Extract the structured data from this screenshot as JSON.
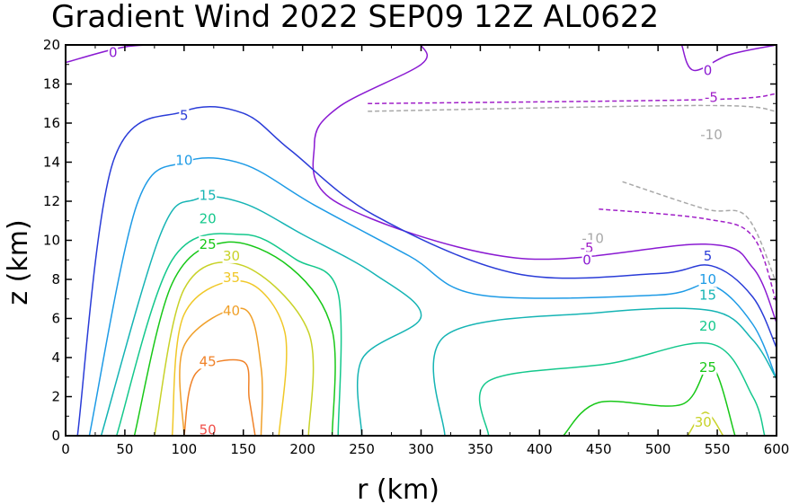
{
  "chart_data": {
    "type": "contour",
    "title": "Gradient Wind 2022 SEP09 12Z  AL0622",
    "xlabel": "r (km)",
    "ylabel": "z (km)",
    "xlim": [
      0,
      600
    ],
    "ylim": [
      0,
      20
    ],
    "x_ticks": [
      0,
      50,
      100,
      150,
      200,
      250,
      300,
      350,
      400,
      450,
      500,
      550,
      600
    ],
    "y_ticks": [
      0,
      2,
      4,
      6,
      8,
      10,
      12,
      14,
      16,
      18,
      20
    ],
    "contour_levels": [
      {
        "value": -10,
        "color": "#a8a8a8",
        "dashed": true,
        "label": "-10",
        "segments": [
          [
            [
              255,
              16.6
            ],
            [
              540,
              16.9
            ],
            [
              600,
              16.6
            ]
          ],
          [
            [
              470,
              13.0
            ],
            [
              540,
              11.6
            ],
            [
              575,
              11.2
            ],
            [
              600,
              7.8
            ]
          ]
        ]
      },
      {
        "value": -5,
        "color": "#a020c8",
        "dashed": true,
        "label": "-5",
        "segments": [
          [
            [
              255,
              17.0
            ],
            [
              540,
              17.2
            ],
            [
              600,
              17.5
            ]
          ],
          [
            [
              450,
              11.6
            ],
            [
              540,
              11.1
            ],
            [
              580,
              10.2
            ],
            [
              600,
              6.8
            ]
          ]
        ]
      },
      {
        "value": 0,
        "color": "#8a1ad2",
        "dashed": false,
        "label": "0",
        "segments": [
          [
            [
              0,
              19.1
            ],
            [
              50,
              19.9
            ],
            [
              90,
              20.0
            ]
          ],
          [
            [
              300,
              20.0
            ],
            [
              300,
              19.0
            ],
            [
              230,
              16.8
            ],
            [
              210,
              14.9
            ],
            [
              230,
              11.9
            ],
            [
              380,
              9.1
            ],
            [
              540,
              9.8
            ],
            [
              580,
              8.6
            ],
            [
              600,
              5.8
            ]
          ],
          [
            [
              520,
              20.0
            ],
            [
              530,
              18.7
            ],
            [
              560,
              19.5
            ],
            [
              600,
              20.0
            ]
          ]
        ]
      },
      {
        "value": 5,
        "color": "#2a3cd8",
        "dashed": false,
        "label": "5",
        "segments": [
          [
            [
              10,
              0
            ],
            [
              40,
              14
            ],
            [
              100,
              16.6
            ],
            [
              150,
              16.5
            ],
            [
              190,
              14.6
            ],
            [
              260,
              11.3
            ],
            [
              380,
              8.3
            ],
            [
              500,
              8.3
            ],
            [
              545,
              8.7
            ],
            [
              580,
              7.1
            ],
            [
              600,
              4.5
            ]
          ]
        ]
      },
      {
        "value": 10,
        "color": "#1e9be6",
        "dashed": false,
        "label": "10",
        "segments": [
          [
            [
              20,
              0
            ],
            [
              60,
              11.8
            ],
            [
              100,
              14.0
            ],
            [
              150,
              13.9
            ],
            [
              210,
              11.8
            ],
            [
              290,
              9.2
            ],
            [
              350,
              7.2
            ],
            [
              500,
              7.2
            ],
            [
              545,
              7.7
            ],
            [
              580,
              5.7
            ],
            [
              600,
              2.9
            ]
          ]
        ]
      },
      {
        "value": 15,
        "color": "#15b4b4",
        "dashed": false,
        "label": "15",
        "segments": [
          [
            [
              30,
              0
            ],
            [
              80,
              10.3
            ],
            [
              110,
              12.1
            ],
            [
              150,
              11.9
            ],
            [
              200,
              10.3
            ],
            [
              260,
              8.3
            ],
            [
              300,
              6.1
            ],
            [
              250,
              3.9
            ],
            [
              250,
              0
            ]
          ],
          [
            [
              320,
              0
            ],
            [
              320,
              5.1
            ],
            [
              450,
              6.3
            ],
            [
              545,
              6.4
            ],
            [
              580,
              4.9
            ],
            [
              600,
              2.9
            ]
          ]
        ]
      },
      {
        "value": 20,
        "color": "#14c88c",
        "dashed": false,
        "label": "20",
        "segments": [
          [
            [
              43,
              0
            ],
            [
              90,
              9.0
            ],
            [
              150,
              10.3
            ],
            [
              195,
              9.0
            ],
            [
              230,
              7.3
            ],
            [
              230,
              0
            ]
          ],
          [
            [
              357,
              0
            ],
            [
              357,
              2.8
            ],
            [
              460,
              3.7
            ],
            [
              545,
              4.7
            ],
            [
              580,
              2.0
            ],
            [
              590,
              0
            ]
          ]
        ]
      },
      {
        "value": 25,
        "color": "#18c818",
        "dashed": false,
        "label": "25",
        "segments": [
          [
            [
              58,
              0
            ],
            [
              90,
              7.8
            ],
            [
              135,
              9.9
            ],
            [
              190,
              8.6
            ],
            [
              225,
              5.4
            ],
            [
              225,
              0
            ]
          ],
          [
            [
              420,
              0
            ],
            [
              450,
              1.7
            ],
            [
              520,
              1.6
            ],
            [
              545,
              3.6
            ],
            [
              565,
              0
            ]
          ]
        ]
      },
      {
        "value": 30,
        "color": "#c8d228",
        "dashed": false,
        "label": "30",
        "segments": [
          [
            [
              75,
              0
            ],
            [
              100,
              7.5
            ],
            [
              150,
              8.7
            ],
            [
              205,
              5.3
            ],
            [
              205,
              0
            ]
          ],
          [
            [
              525,
              0
            ],
            [
              540,
              1.2
            ],
            [
              555,
              0
            ]
          ]
        ]
      },
      {
        "value": 35,
        "color": "#f0c828",
        "dashed": false,
        "label": "35",
        "segments": [
          [
            [
              90,
              0
            ],
            [
              100,
              6.2
            ],
            [
              150,
              7.9
            ],
            [
              185,
              5.3
            ],
            [
              180,
              0
            ]
          ]
        ]
      },
      {
        "value": 40,
        "color": "#f0a02a",
        "dashed": false,
        "label": "40",
        "segments": [
          [
            [
              100,
              0
            ],
            [
              100,
              4.6
            ],
            [
              150,
              6.5
            ],
            [
              165,
              3.5
            ],
            [
              165,
              0
            ]
          ]
        ]
      },
      {
        "value": 45,
        "color": "#f08228",
        "dashed": false,
        "label": "45",
        "segments": [
          [
            [
              100,
              0
            ],
            [
              110,
              3.2
            ],
            [
              150,
              3.8
            ],
            [
              155,
              1.9
            ],
            [
              160,
              0
            ]
          ]
        ]
      },
      {
        "value": 50,
        "color": "#f0504a",
        "dashed": false,
        "label": "50",
        "segments": []
      }
    ],
    "labels": [
      {
        "text": "0",
        "x": 40,
        "y": 19.6,
        "color": "#8a1ad2"
      },
      {
        "text": "0",
        "x": 542,
        "y": 18.7,
        "color": "#8a1ad2"
      },
      {
        "text": "-5",
        "x": 545,
        "y": 17.3,
        "color": "#a020c8"
      },
      {
        "text": "-10",
        "x": 545,
        "y": 15.4,
        "color": "#a8a8a8"
      },
      {
        "text": "5",
        "x": 100,
        "y": 16.4,
        "color": "#2a3cd8"
      },
      {
        "text": "10",
        "x": 100,
        "y": 14.1,
        "color": "#1e9be6"
      },
      {
        "text": "15",
        "x": 120,
        "y": 12.3,
        "color": "#15b4b4"
      },
      {
        "text": "20",
        "x": 120,
        "y": 11.1,
        "color": "#14c88c"
      },
      {
        "text": "25",
        "x": 120,
        "y": 9.8,
        "color": "#18c818"
      },
      {
        "text": "30",
        "x": 140,
        "y": 9.2,
        "color": "#c8d228"
      },
      {
        "text": "35",
        "x": 140,
        "y": 8.1,
        "color": "#f0c828"
      },
      {
        "text": "40",
        "x": 140,
        "y": 6.4,
        "color": "#f0a02a"
      },
      {
        "text": "45",
        "x": 120,
        "y": 3.8,
        "color": "#f08228"
      },
      {
        "text": "50",
        "x": 120,
        "y": 0.3,
        "color": "#f0504a"
      },
      {
        "text": "-10",
        "x": 445,
        "y": 10.1,
        "color": "#a8a8a8"
      },
      {
        "text": "-5",
        "x": 440,
        "y": 9.6,
        "color": "#a020c8"
      },
      {
        "text": "0",
        "x": 440,
        "y": 9.0,
        "color": "#8a1ad2"
      },
      {
        "text": "5",
        "x": 542,
        "y": 9.2,
        "color": "#2a3cd8"
      },
      {
        "text": "10",
        "x": 542,
        "y": 8.0,
        "color": "#1e9be6"
      },
      {
        "text": "15",
        "x": 542,
        "y": 7.2,
        "color": "#15b4b4"
      },
      {
        "text": "20",
        "x": 542,
        "y": 5.6,
        "color": "#14c88c"
      },
      {
        "text": "25",
        "x": 542,
        "y": 3.5,
        "color": "#18c818"
      },
      {
        "text": "30",
        "x": 538,
        "y": 0.7,
        "color": "#c8d228"
      }
    ]
  }
}
